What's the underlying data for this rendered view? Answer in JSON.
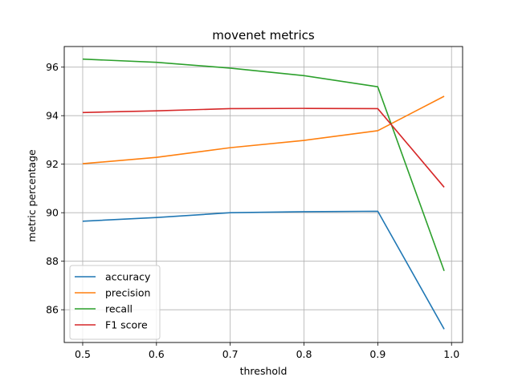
{
  "chart_data": {
    "type": "line",
    "title": "movenet metrics",
    "xlabel": "threshold",
    "ylabel": "metric percentage",
    "x": [
      0.5,
      0.6,
      0.7,
      0.8,
      0.9,
      0.99
    ],
    "xlim": [
      0.475,
      1.015
    ],
    "ylim": [
      84.65,
      96.85
    ],
    "xticks": [
      0.5,
      0.6,
      0.7,
      0.8,
      0.9,
      1.0
    ],
    "xtick_labels": [
      "0.5",
      "0.6",
      "0.7",
      "0.8",
      "0.9",
      "1.0"
    ],
    "yticks": [
      86,
      88,
      90,
      92,
      94,
      96
    ],
    "ytick_labels": [
      "86",
      "88",
      "90",
      "92",
      "94",
      "96"
    ],
    "grid": true,
    "legend_position": "lower-left",
    "series": [
      {
        "name": "accuracy",
        "color": "#1f77b4",
        "values": [
          89.65,
          89.8,
          90.0,
          90.04,
          90.06,
          85.2
        ]
      },
      {
        "name": "precision",
        "color": "#ff7f0e",
        "values": [
          92.02,
          92.28,
          92.68,
          92.98,
          93.38,
          94.8
        ]
      },
      {
        "name": "recall",
        "color": "#2ca02c",
        "values": [
          96.33,
          96.2,
          95.96,
          95.65,
          95.19,
          87.6
        ]
      },
      {
        "name": "F1 score",
        "color": "#d62728",
        "values": [
          94.13,
          94.2,
          94.29,
          94.3,
          94.29,
          91.05
        ]
      }
    ]
  }
}
